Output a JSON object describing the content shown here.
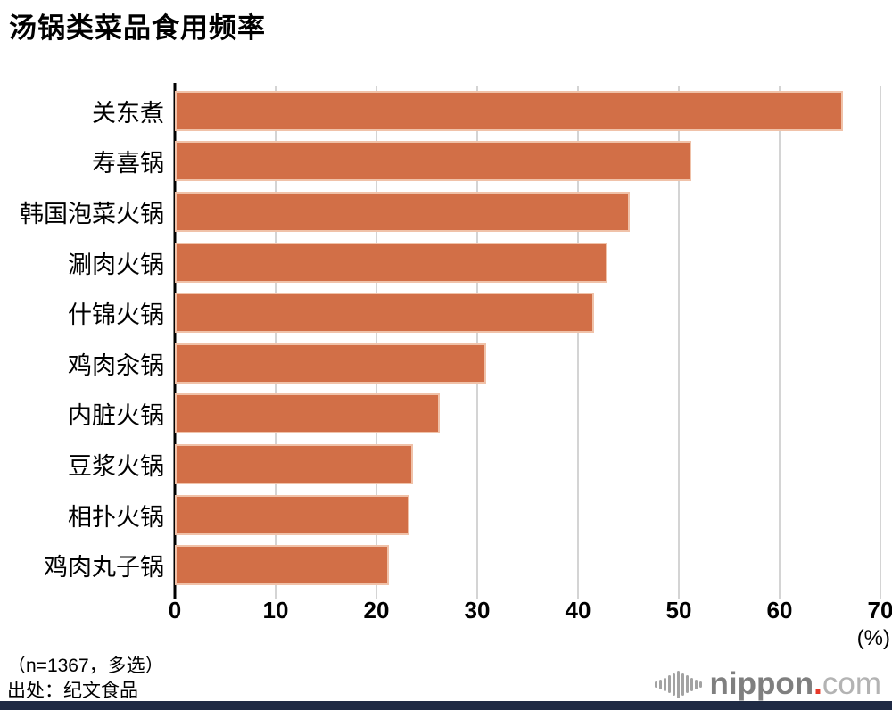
{
  "title": "汤锅类菜品食用频率",
  "chart_data": {
    "type": "bar",
    "orientation": "horizontal",
    "title": "汤锅类菜品食用频率",
    "categories": [
      "关东煮",
      "寿喜锅",
      "韩国泡菜火锅",
      "涮肉火锅",
      "什锦火锅",
      "鸡肉汆锅",
      "内脏火锅",
      "豆浆火锅",
      "相扑火锅",
      "鸡肉丸子锅"
    ],
    "values": [
      66.3,
      51.2,
      45.1,
      42.9,
      41.6,
      30.9,
      26.3,
      23.6,
      23.3,
      21.2
    ],
    "xlim": [
      0,
      70
    ],
    "x_ticks": [
      0,
      10,
      20,
      30,
      40,
      50,
      60,
      70
    ],
    "x_unit": "(%)",
    "grid": true,
    "legend": false,
    "bar_color": "#d26f47"
  },
  "footnote": {
    "sample": "（n=1367，多选）",
    "source": "出处：纪文食品"
  },
  "logo": {
    "name": "nippon",
    "dot": ".",
    "tld": "com",
    "icon_bar_heights": [
      7,
      11,
      15,
      20,
      25,
      31,
      25,
      20,
      15,
      11,
      7
    ]
  },
  "colors": {
    "bar": "#d26f47",
    "bar_edge": "#f0c2a9",
    "grid": "#d4d4d4",
    "bottom_bar": "#1f2a44",
    "logo_dark": "#7f7f7f",
    "logo_light": "#b3b3b3",
    "logo_red": "#e73828"
  }
}
